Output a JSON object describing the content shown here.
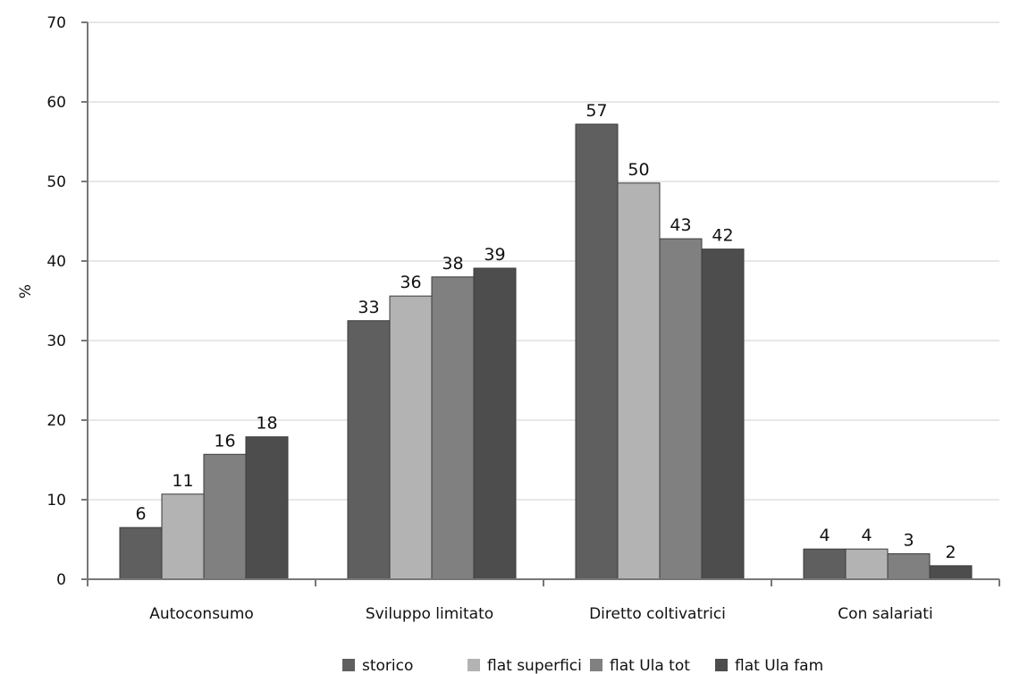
{
  "chart_data": {
    "type": "bar",
    "ylabel": "%",
    "ylim": [
      0,
      70
    ],
    "yticks": [
      0,
      10,
      20,
      30,
      40,
      50,
      60,
      70
    ],
    "grid": true,
    "legend_position": "bottom",
    "categories": [
      "Autoconsumo",
      "Sviluppo limitato",
      "Diretto coltivatrici",
      "Con salariati"
    ],
    "series": [
      {
        "name": "storico",
        "color": "#5f5f5f",
        "values": [
          6.5,
          32.5,
          57.2,
          3.8
        ],
        "labels": [
          "6",
          "33",
          "57",
          "4"
        ]
      },
      {
        "name": "flat superfici",
        "color": "#b3b3b3",
        "values": [
          10.7,
          35.6,
          49.8,
          3.8
        ],
        "labels": [
          "11",
          "36",
          "50",
          "4"
        ]
      },
      {
        "name": "flat Ula tot",
        "color": "#808080",
        "values": [
          15.7,
          38.0,
          42.8,
          3.2
        ],
        "labels": [
          "16",
          "38",
          "43",
          "3"
        ]
      },
      {
        "name": "flat Ula fam",
        "color": "#4d4d4d",
        "values": [
          17.9,
          39.1,
          41.5,
          1.7
        ],
        "labels": [
          "18",
          "39",
          "42",
          "2"
        ]
      }
    ]
  }
}
